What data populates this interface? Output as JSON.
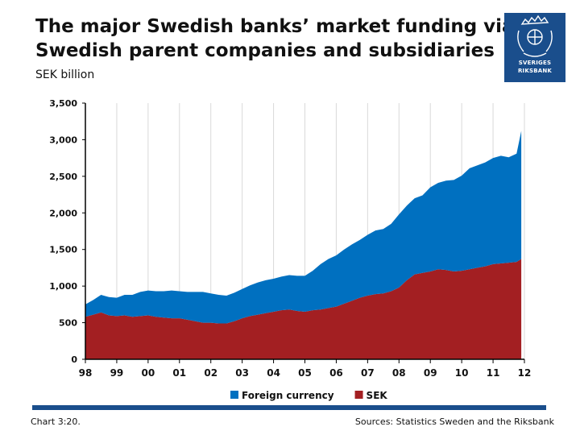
{
  "header": {
    "title_line1": "The major Swedish banks’ market funding via",
    "title_line2": "Swedish parent companies and subsidiaries",
    "unit": "SEK billion"
  },
  "logo": {
    "line1": "SVERIGES",
    "line2": "RIKSBANK",
    "color": "#1a4e8c"
  },
  "footer": {
    "chart_number": "Chart 3:20.",
    "sources": "Sources: Statistics Sweden and the Riksbank"
  },
  "chart_data": {
    "type": "area",
    "stacked": true,
    "title": "The major Swedish banks’ market funding via Swedish parent companies and subsidiaries",
    "ylabel": "SEK billion",
    "xlabel": "",
    "ylim": [
      0,
      3500
    ],
    "xlim": [
      1998,
      2012
    ],
    "y_ticks": [
      0,
      500,
      1000,
      1500,
      2000,
      2500,
      3000,
      3500
    ],
    "y_tick_labels": [
      "0",
      "500",
      "1,000",
      "1,500",
      "2,000",
      "2,500",
      "3,000",
      "3,500"
    ],
    "x_ticks": [
      1998,
      1999,
      2000,
      2001,
      2002,
      2003,
      2004,
      2005,
      2006,
      2007,
      2008,
      2009,
      2010,
      2011,
      2012
    ],
    "x_tick_labels": [
      "98",
      "99",
      "00",
      "01",
      "02",
      "03",
      "04",
      "05",
      "06",
      "07",
      "08",
      "09",
      "10",
      "11",
      "12"
    ],
    "grid": "vertical",
    "legend_position": "bottom",
    "x": [
      1998.0,
      1998.25,
      1998.5,
      1998.75,
      1999.0,
      1999.25,
      1999.5,
      1999.75,
      2000.0,
      2000.25,
      2000.5,
      2000.75,
      2001.0,
      2001.25,
      2001.5,
      2001.75,
      2002.0,
      2002.25,
      2002.5,
      2002.75,
      2003.0,
      2003.25,
      2003.5,
      2003.75,
      2004.0,
      2004.25,
      2004.5,
      2004.75,
      2005.0,
      2005.25,
      2005.5,
      2005.75,
      2006.0,
      2006.25,
      2006.5,
      2006.75,
      2007.0,
      2007.25,
      2007.5,
      2007.75,
      2008.0,
      2008.25,
      2008.5,
      2008.75,
      2009.0,
      2009.25,
      2009.5,
      2009.75,
      2010.0,
      2010.25,
      2010.5,
      2010.75,
      2011.0,
      2011.25,
      2011.5,
      2011.75,
      2011.9
    ],
    "series": [
      {
        "name": "SEK",
        "color": "#a31f22",
        "values": [
          580,
          610,
          640,
          600,
          590,
          600,
          580,
          590,
          600,
          580,
          570,
          560,
          560,
          540,
          520,
          500,
          500,
          490,
          490,
          520,
          560,
          590,
          610,
          630,
          650,
          670,
          680,
          660,
          650,
          670,
          680,
          700,
          720,
          760,
          800,
          840,
          870,
          890,
          900,
          930,
          980,
          1080,
          1160,
          1180,
          1200,
          1230,
          1220,
          1200,
          1210,
          1230,
          1250,
          1270,
          1300,
          1310,
          1320,
          1330,
          1370
        ]
      },
      {
        "name": "Foreign currency",
        "color": "#0070c0",
        "values": [
          170,
          200,
          240,
          250,
          250,
          280,
          300,
          330,
          340,
          350,
          360,
          380,
          370,
          380,
          400,
          420,
          400,
          390,
          380,
          390,
          400,
          420,
          440,
          450,
          450,
          460,
          470,
          480,
          490,
          540,
          620,
          670,
          700,
          740,
          770,
          790,
          830,
          870,
          880,
          920,
          1000,
          1020,
          1040,
          1060,
          1150,
          1180,
          1220,
          1250,
          1300,
          1380,
          1400,
          1420,
          1450,
          1470,
          1440,
          1480,
          1750
        ]
      }
    ]
  }
}
